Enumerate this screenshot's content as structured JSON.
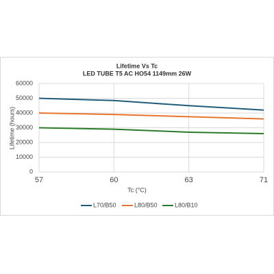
{
  "chart_data": {
    "type": "line",
    "title": "Lifetime Vs Tc",
    "subtitle": "LED TUBE T5 AC HO54  1149mm 26W",
    "x_label": "Tc (°C)",
    "y_label": "Lifetime (hours)",
    "categories": [
      "57",
      "60",
      "63",
      "71"
    ],
    "series": [
      {
        "name": "L70/B50",
        "color": "#1f5a7a",
        "values": [
          50000,
          48500,
          45000,
          42000
        ]
      },
      {
        "name": "L80/B50",
        "color": "#e8732c",
        "values": [
          40000,
          39000,
          37500,
          36000
        ]
      },
      {
        "name": "L80/B10",
        "color": "#2a7a2a",
        "values": [
          30000,
          29000,
          27000,
          26000
        ]
      }
    ],
    "ylim": [
      0,
      60000
    ],
    "yticks": [
      0,
      10000,
      20000,
      30000,
      40000,
      50000,
      60000
    ],
    "grid": true,
    "legend": "bottom"
  }
}
